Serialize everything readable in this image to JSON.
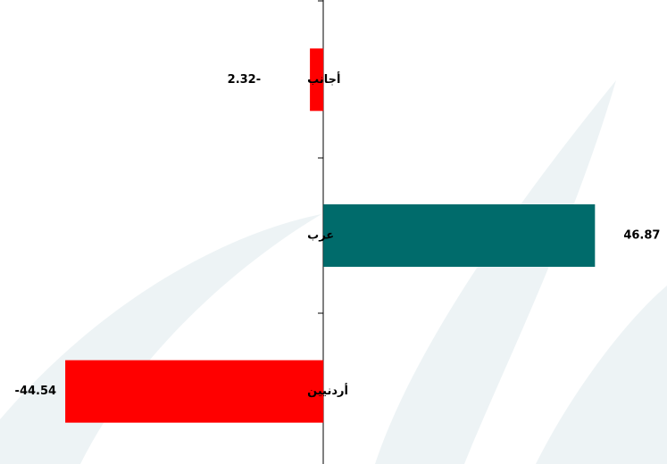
{
  "chart_data": {
    "type": "bar",
    "orientation": "horizontal",
    "categories": [
      "أجانب",
      "عرب",
      "أردنيين"
    ],
    "values": [
      -2.32,
      46.87,
      -44.54
    ],
    "value_labels": [
      "2.32-",
      "46.87",
      "-44.54"
    ],
    "colors": [
      "#ff0000",
      "#006b6b",
      "#ff0000"
    ],
    "xlim": [
      -55.8,
      59.3
    ]
  }
}
